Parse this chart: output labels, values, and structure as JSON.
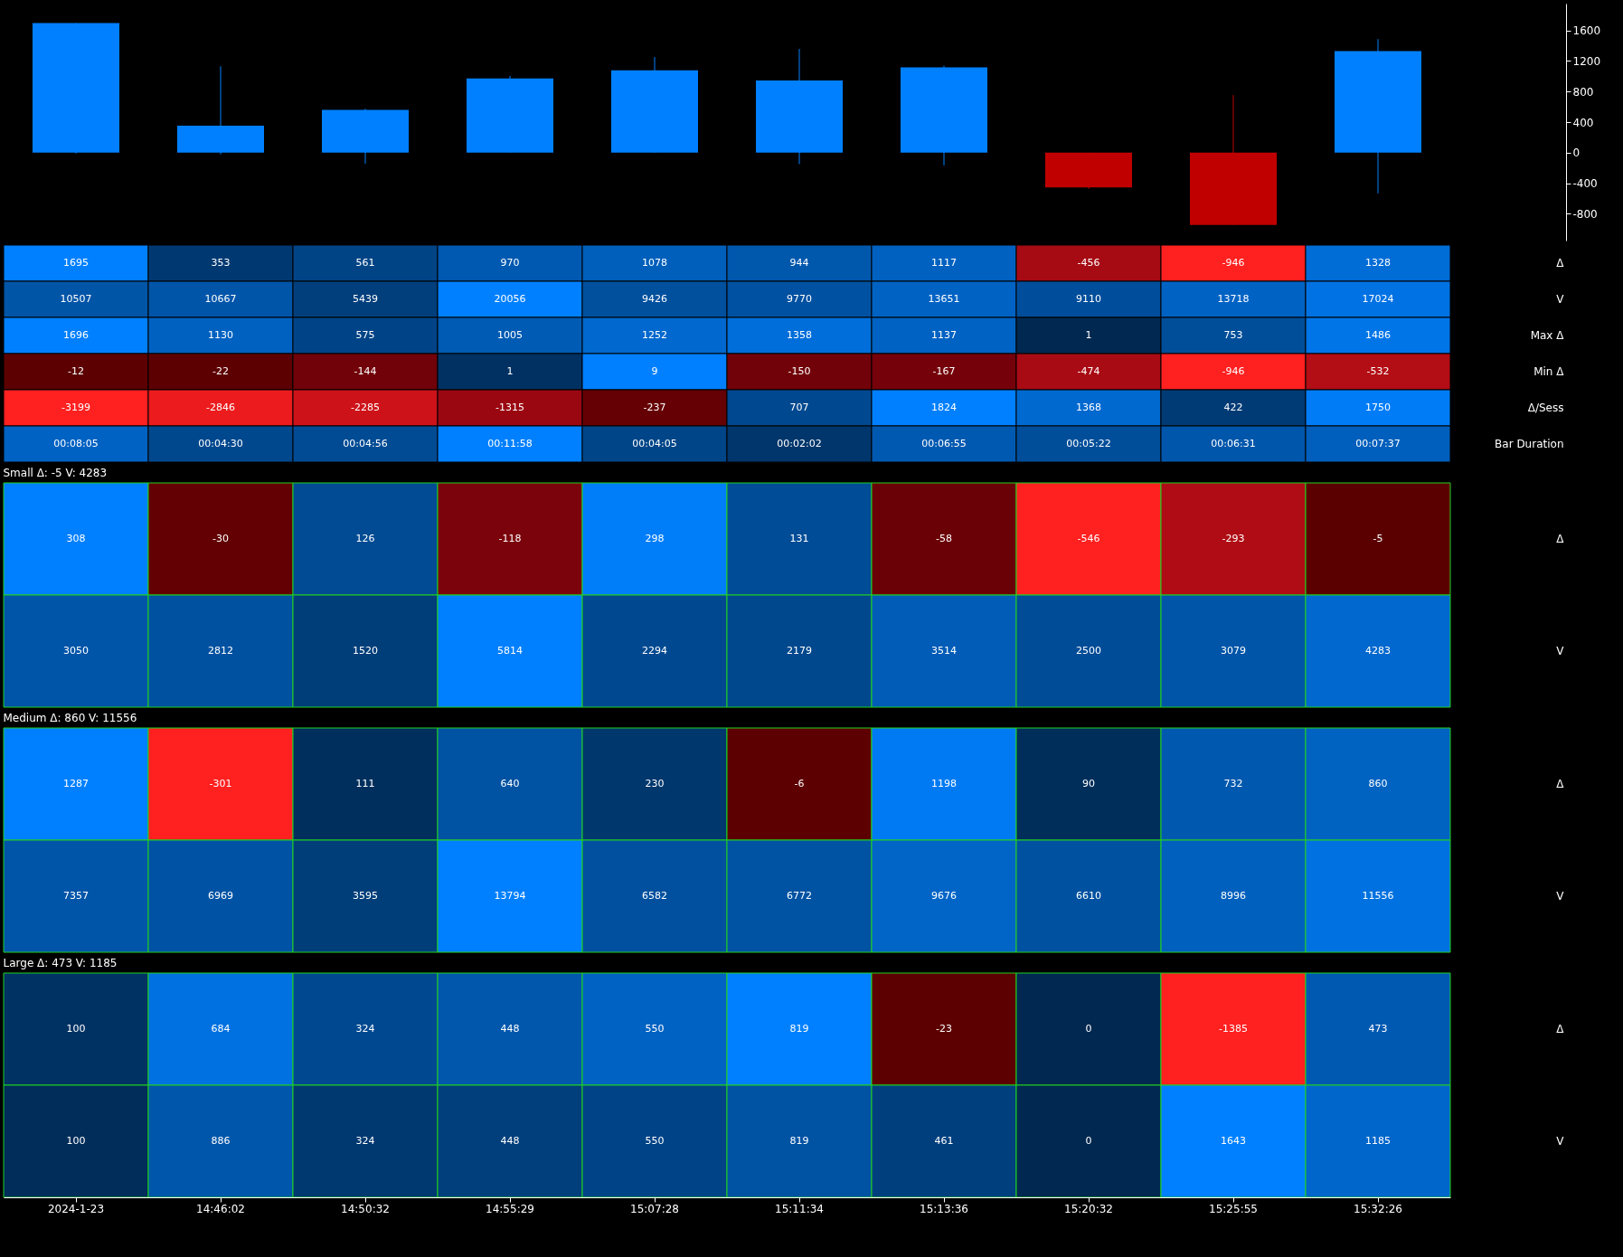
{
  "chart_data": [
    {
      "type": "candlestick",
      "categories": [
        null,
        null,
        null,
        null,
        null,
        null,
        null,
        null,
        null,
        null
      ],
      "ohlc": [
        [
          0,
          1696,
          -12,
          1695
        ],
        [
          0,
          1130,
          -22,
          353
        ],
        [
          0,
          575,
          -144,
          561
        ],
        [
          0,
          1005,
          0,
          970
        ],
        [
          0,
          1252,
          0,
          1078
        ],
        [
          0,
          1358,
          -150,
          944
        ],
        [
          0,
          1137,
          -167,
          1117
        ],
        [
          0,
          1,
          -474,
          -456
        ],
        [
          0,
          753,
          -946,
          -946
        ],
        [
          0,
          1486,
          -532,
          1328
        ]
      ],
      "ylim": [
        -1150,
        1950
      ],
      "yticks": [
        -800,
        -400,
        0,
        400,
        800,
        1200,
        1600
      ],
      "tick_labels": "y"
    },
    {
      "type": "heatmap",
      "categories": [
        null,
        null,
        null,
        null,
        null,
        null,
        null,
        null,
        null,
        null
      ],
      "y_categories": [
        "Δ",
        "V",
        "Max Δ",
        "Min Δ",
        "Δ/Sess",
        "Bar Duration"
      ],
      "cells": [
        [
          1695,
          353,
          561,
          970,
          1078,
          944,
          1117,
          -456,
          -946,
          1328
        ],
        [
          10507,
          10667,
          5439,
          20056,
          9426,
          9770,
          13651,
          9110,
          13718,
          17024
        ],
        [
          1696,
          1130,
          575,
          1005,
          1252,
          1358,
          1137,
          1,
          753,
          1486
        ],
        [
          -12,
          -22,
          -144,
          1,
          9,
          -150,
          -167,
          -474,
          -946,
          -532
        ],
        [
          -3199,
          -2846,
          -2285,
          -1315,
          -237,
          707,
          1824,
          1368,
          422,
          1750
        ],
        [
          485,
          270,
          296,
          718,
          245,
          122,
          415,
          322,
          391,
          457
        ]
      ],
      "cell_labels": [
        [
          "1695",
          "353",
          "561",
          "970",
          "1078",
          "944",
          "1117",
          "-456",
          "-946",
          "1328"
        ],
        [
          "10507",
          "10667",
          "5439",
          "20056",
          "9426",
          "9770",
          "13651",
          "9110",
          "13718",
          "17024"
        ],
        [
          "1696",
          "1130",
          "575",
          "1005",
          "1252",
          "1358",
          "1137",
          "1",
          "753",
          "1486"
        ],
        [
          "-12",
          "-22",
          "-144",
          "1",
          "9",
          "-150",
          "-167",
          "-474",
          "-946",
          "-532"
        ],
        [
          "-3199",
          "-2846",
          "-2285",
          "-1315",
          "-237",
          "707",
          "1824",
          "1368",
          "422",
          "1750"
        ],
        [
          "00:08:05",
          "00:04:30",
          "00:04:56",
          "00:11:58",
          "00:04:05",
          "00:02:02",
          "00:06:55",
          "00:05:22",
          "00:06:31",
          "00:07:37"
        ]
      ],
      "tick_labels": "y"
    },
    {
      "type": "heatmap",
      "title": "Small  Δ: -5  V: 4283",
      "categories": [
        null,
        null,
        null,
        null,
        null,
        null,
        null,
        null,
        null,
        null
      ],
      "y_categories": [
        "Δ",
        "V"
      ],
      "cells": [
        [
          308,
          -30,
          126,
          -118,
          298,
          131,
          -58,
          -546,
          -293,
          -5
        ],
        [
          3050,
          2812,
          1520,
          5814,
          2294,
          2179,
          3514,
          2500,
          3079,
          4283
        ]
      ],
      "data_labels": true,
      "tick_labels": "y"
    },
    {
      "type": "heatmap",
      "title": "Medium  Δ: 860  V: 11556",
      "categories": [
        null,
        null,
        null,
        null,
        null,
        null,
        null,
        null,
        null,
        null
      ],
      "y_categories": [
        "Δ",
        "V"
      ],
      "cells": [
        [
          1287,
          -301,
          111,
          640,
          230,
          -6,
          1198,
          90,
          732,
          860
        ],
        [
          7357,
          6969,
          3595,
          13794,
          6582,
          6772,
          9676,
          6610,
          8996,
          11556
        ]
      ],
      "data_labels": true,
      "tick_labels": "y"
    },
    {
      "type": "heatmap",
      "title": "Large  Δ: 473  V: 1185",
      "categories": [
        "2024-1-23",
        "14:46:02",
        "14:50:32",
        "14:55:29",
        "15:07:28",
        "15:11:34",
        "15:13:36",
        "15:20:32",
        "15:25:55",
        "15:32:26"
      ],
      "y_categories": [
        "Δ",
        "V"
      ],
      "cells": [
        [
          100,
          684,
          324,
          448,
          550,
          819,
          -23,
          0,
          -1385,
          473
        ],
        [
          100,
          886,
          324,
          448,
          550,
          819,
          461,
          0,
          1643,
          1185
        ]
      ],
      "data_labels": true
    }
  ]
}
